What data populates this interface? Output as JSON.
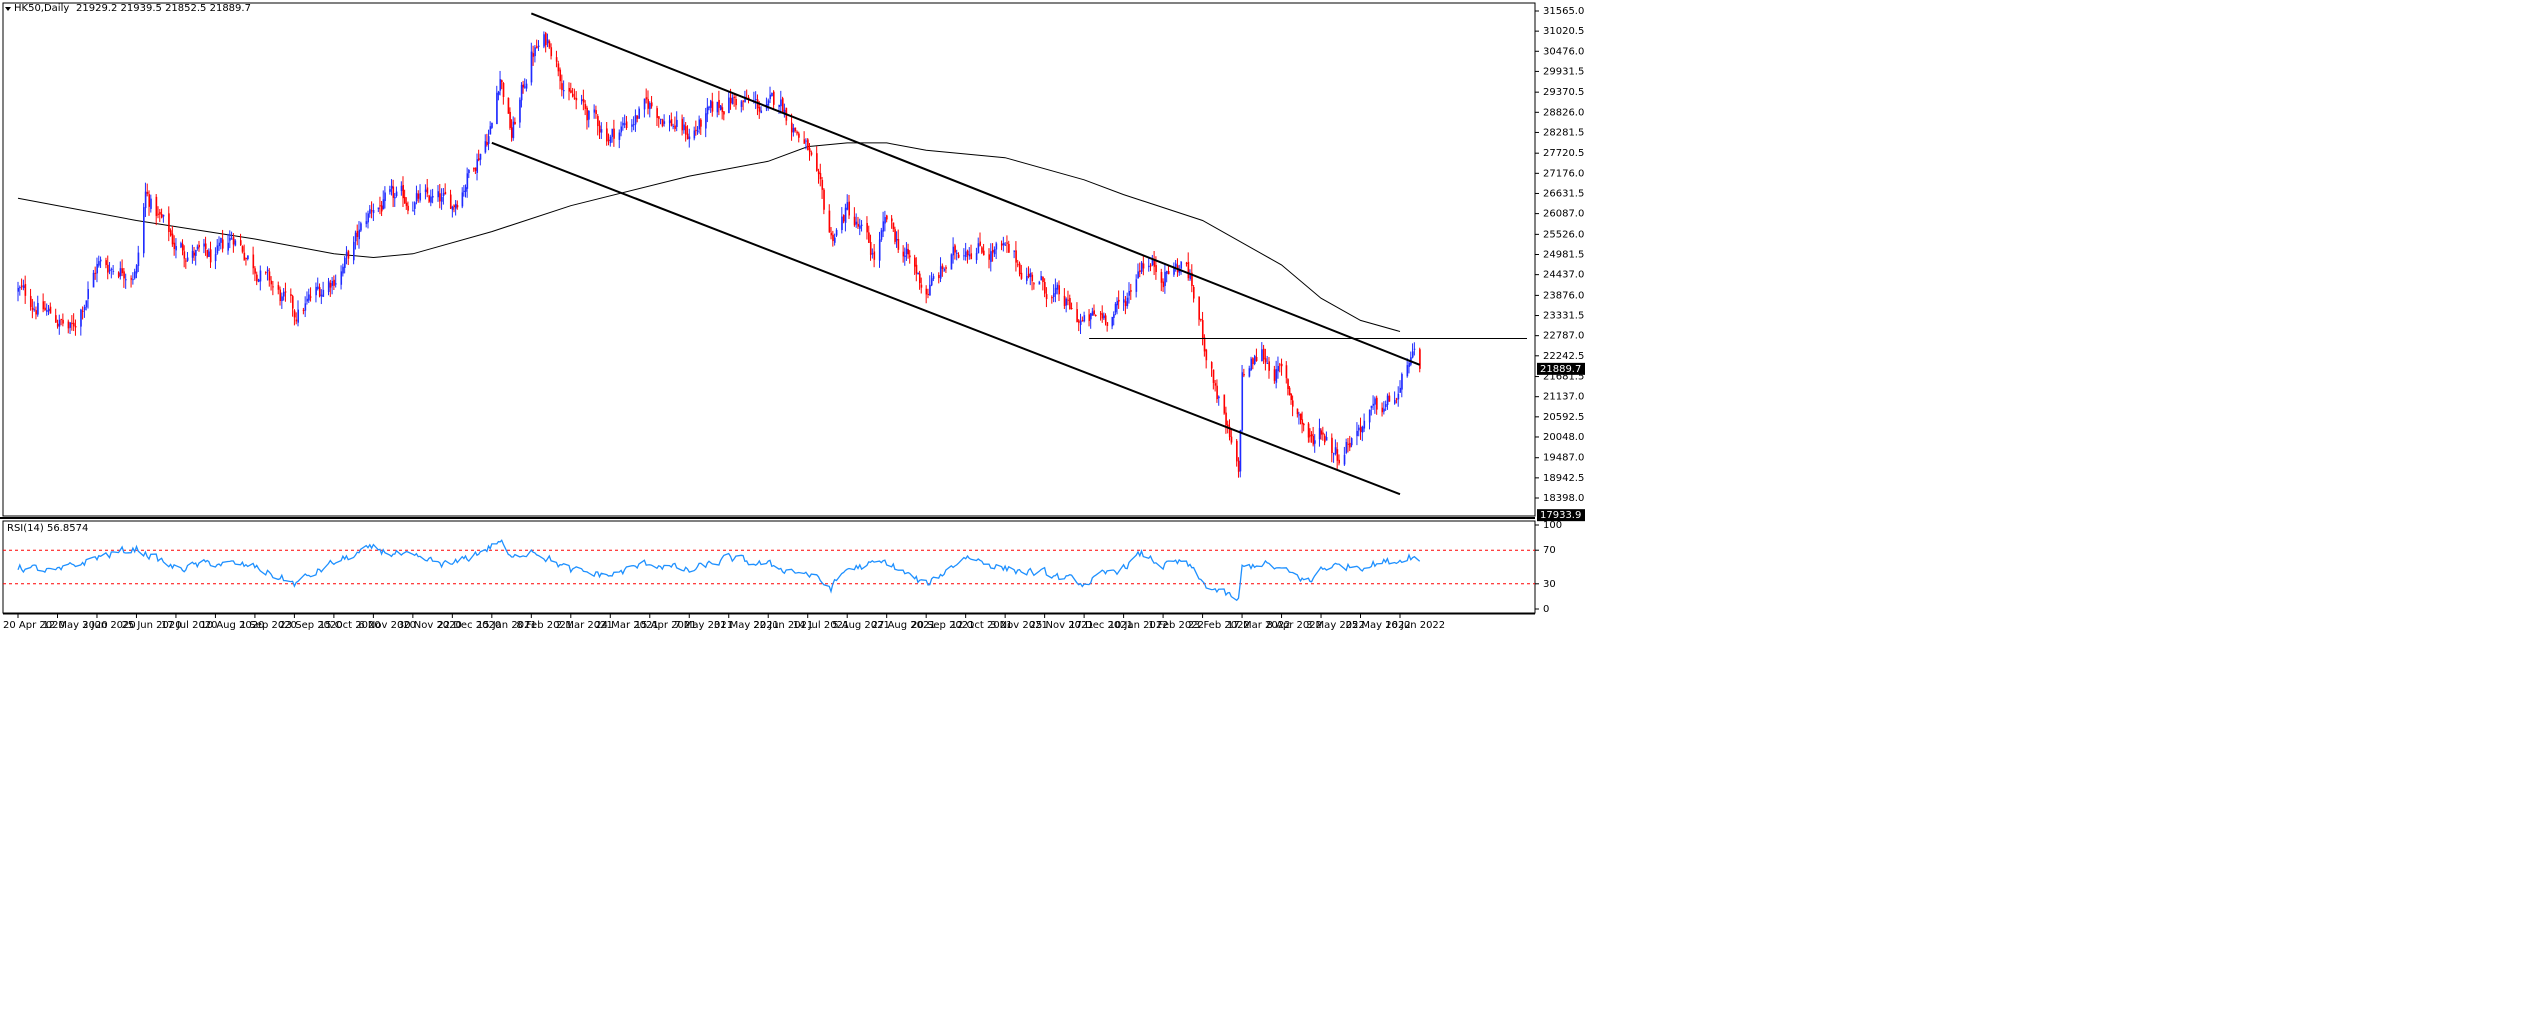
{
  "header": {
    "symbol_timeframe": "HK50,Daily",
    "ohlc": "21929.2 21939.5 21852.5 21889.7"
  },
  "rsi_header": {
    "label": "RSI(14) 56.8574"
  },
  "colors": {
    "bull": "#1f2bff",
    "bear": "#ff0000",
    "ma": "#000000",
    "trendline": "#000000",
    "rsi_line": "#1e90ff",
    "rsi_levels": "#ff0000",
    "price_tag_bg": "#000000",
    "price_tag_text": "#ffffff"
  },
  "chart_data": [
    {
      "type": "candlestick",
      "title": "HK50,Daily",
      "ylim": [
        17933.9,
        31565.0
      ],
      "y_ticks": [
        "31565.0",
        "31020.5",
        "30476.0",
        "29931.5",
        "29370.5",
        "28826.0",
        "28281.5",
        "27720.5",
        "27176.0",
        "26631.5",
        "26087.0",
        "25526.0",
        "24981.5",
        "24437.0",
        "23876.0",
        "23331.5",
        "22787.0",
        "22242.5",
        "21681.5",
        "21137.0",
        "20592.5",
        "20048.0",
        "19487.0",
        "18942.5",
        "18398.0"
      ],
      "x_ticks": [
        "20 Apr 2020",
        "12 May 2020",
        "3 Jun 2020",
        "25 Jun 2020",
        "17 Jul 2020",
        "10 Aug 2020",
        "1 Sep 2020",
        "23 Sep 2020",
        "15 Oct 2020",
        "6 Nov 2020",
        "30 Nov 2020",
        "22 Dec 2020",
        "15 Jan 2021",
        "8 Feb 2021",
        "2 Mar 2021",
        "24 Mar 2021",
        "15 Apr 2021",
        "7 May 2021",
        "31 May 2021",
        "22 Jun 2021",
        "14 Jul 2021",
        "5 Aug 2021",
        "27 Aug 2021",
        "20 Sep 2021",
        "12 Oct 2021",
        "3 Nov 2021",
        "25 Nov 2021",
        "17 Dec 2021",
        "10 Jan 2022",
        "1 Feb 2022",
        "23 Feb 2022",
        "17 Mar 2022",
        "8 Apr 2022",
        "3 May 2022",
        "25 May 2022",
        "16 Jun 2022"
      ],
      "current_price": "21889.7",
      "bottom_price_tag": "17933.9",
      "close_path": [
        [
          "20 Apr 2020",
          24000
        ],
        [
          "12 May 2020",
          23200
        ],
        [
          "20 May 2020",
          22900
        ],
        [
          "3 Jun 2020",
          24700
        ],
        [
          "25 Jun 2020",
          24600
        ],
        [
          "30 Jun 2020",
          26600
        ],
        [
          "17 Jul 2020",
          25200
        ],
        [
          "10 Aug 2020",
          24800
        ],
        [
          "20 Aug 2020",
          25500
        ],
        [
          "1 Sep 2020",
          24700
        ],
        [
          "23 Sep 2020",
          23300
        ],
        [
          "15 Oct 2020",
          24400
        ],
        [
          "22 Oct 2020",
          24800
        ],
        [
          "6 Nov 2020",
          26300
        ],
        [
          "20 Nov 2020",
          26400
        ],
        [
          "30 Nov 2020",
          26500
        ],
        [
          "22 Dec 2020",
          26300
        ],
        [
          "15 Jan 2021",
          28500
        ],
        [
          "20 Jan 2021",
          29900
        ],
        [
          "27 Jan 2021",
          28200
        ],
        [
          "8 Feb 2021",
          30400
        ],
        [
          "18 Feb 2021",
          30800
        ],
        [
          "2 Mar 2021",
          29200
        ],
        [
          "24 Mar 2021",
          28200
        ],
        [
          "15 Apr 2021",
          29000
        ],
        [
          "7 May 2021",
          28200
        ],
        [
          "31 May 2021",
          29200
        ],
        [
          "22 Jun 2021",
          28900
        ],
        [
          "28 Jun 2021",
          29200
        ],
        [
          "14 Jul 2021",
          27800
        ],
        [
          "27 Jul 2021",
          25400
        ],
        [
          "5 Aug 2021",
          26200
        ],
        [
          "20 Aug 2021",
          24900
        ],
        [
          "27 Aug 2021",
          25800
        ],
        [
          "20 Sep 2021",
          24000
        ],
        [
          "12 Oct 2021",
          25300
        ],
        [
          "3 Nov 2021",
          25000
        ],
        [
          "25 Nov 2021",
          24100
        ],
        [
          "17 Dec 2021",
          23100
        ],
        [
          "10 Jan 2022",
          23600
        ],
        [
          "20 Jan 2022",
          24900
        ],
        [
          "1 Feb 2022",
          24500
        ],
        [
          "14 Feb 2022",
          24700
        ],
        [
          "23 Feb 2022",
          22800
        ],
        [
          "15 Mar 2022",
          18900
        ],
        [
          "17 Mar 2022",
          21700
        ],
        [
          "28 Mar 2022",
          22300
        ],
        [
          "8 Apr 2022",
          21700
        ],
        [
          "27 Apr 2022",
          19900
        ],
        [
          "3 May 2022",
          20300
        ],
        [
          "12 May 2022",
          19600
        ],
        [
          "25 May 2022",
          20400
        ],
        [
          "16 Jun 2022",
          21200
        ],
        [
          "21 Jun 2022",
          22200
        ],
        [
          "27 Jun 2022",
          21889.7
        ]
      ],
      "moving_average_path": [
        [
          "20 Apr 2020",
          26500
        ],
        [
          "25 Jun 2020",
          25900
        ],
        [
          "1 Sep 2020",
          25400
        ],
        [
          "15 Oct 2020",
          25000
        ],
        [
          "6 Nov 2020",
          24900
        ],
        [
          "30 Nov 2020",
          25000
        ],
        [
          "15 Jan 2021",
          25600
        ],
        [
          "2 Mar 2021",
          26300
        ],
        [
          "7 May 2021",
          27100
        ],
        [
          "22 Jun 2021",
          27500
        ],
        [
          "14 Jul 2021",
          27900
        ],
        [
          "5 Aug 2021",
          28000
        ],
        [
          "27 Aug 2021",
          28000
        ],
        [
          "20 Sep 2021",
          27800
        ],
        [
          "3 Nov 2021",
          27600
        ],
        [
          "17 Dec 2021",
          27000
        ],
        [
          "10 Jan 2022",
          26600
        ],
        [
          "23 Feb 2022",
          25900
        ],
        [
          "8 Apr 2022",
          24700
        ],
        [
          "3 May 2022",
          23800
        ],
        [
          "25 May 2022",
          23200
        ],
        [
          "16 Jun 2022",
          22900
        ]
      ],
      "channel_upper": [
        [
          "8 Feb 2021",
          31500
        ],
        [
          "27 Jun 2022",
          22000
        ]
      ],
      "channel_lower": [
        [
          "15 Jan 2021",
          28000
        ],
        [
          "16 Jun 2022",
          18500
        ]
      ],
      "horizontal_level": 22710
    },
    {
      "type": "line",
      "title": "RSI(14) 56.8574",
      "ylim": [
        0,
        100
      ],
      "y_ticks": [
        "100",
        "70",
        "30",
        "0"
      ],
      "levels": [
        70,
        30
      ],
      "rsi_path": [
        [
          "20 Apr 2020",
          50
        ],
        [
          "12 May 2020",
          44
        ],
        [
          "3 Jun 2020",
          62
        ],
        [
          "25 Jun 2020",
          72
        ],
        [
          "17 Jul 2020",
          48
        ],
        [
          "10 Aug 2020",
          55
        ],
        [
          "1 Sep 2020",
          50
        ],
        [
          "23 Sep 2020",
          30
        ],
        [
          "15 Oct 2020",
          55
        ],
        [
          "6 Nov 2020",
          72
        ],
        [
          "30 Nov 2020",
          60
        ],
        [
          "22 Dec 2020",
          52
        ],
        [
          "15 Jan 2021",
          75
        ],
        [
          "20 Jan 2021",
          82
        ],
        [
          "27 Jan 2021",
          58
        ],
        [
          "8 Feb 2021",
          72
        ],
        [
          "2 Mar 2021",
          45
        ],
        [
          "24 Mar 2021",
          40
        ],
        [
          "15 Apr 2021",
          55
        ],
        [
          "7 May 2021",
          45
        ],
        [
          "31 May 2021",
          60
        ],
        [
          "22 Jun 2021",
          52
        ],
        [
          "14 Jul 2021",
          42
        ],
        [
          "27 Jul 2021",
          25
        ],
        [
          "5 Aug 2021",
          48
        ],
        [
          "27 Aug 2021",
          55
        ],
        [
          "20 Sep 2021",
          28
        ],
        [
          "12 Oct 2021",
          63
        ],
        [
          "3 Nov 2021",
          48
        ],
        [
          "25 Nov 2021",
          42
        ],
        [
          "17 Dec 2021",
          30
        ],
        [
          "10 Jan 2022",
          50
        ],
        [
          "20 Jan 2022",
          65
        ],
        [
          "1 Feb 2022",
          52
        ],
        [
          "14 Feb 2022",
          55
        ],
        [
          "23 Feb 2022",
          30
        ],
        [
          "15 Mar 2022",
          10
        ],
        [
          "17 Mar 2022",
          48
        ],
        [
          "28 Mar 2022",
          55
        ],
        [
          "8 Apr 2022",
          46
        ],
        [
          "27 Apr 2022",
          32
        ],
        [
          "3 May 2022",
          50
        ],
        [
          "25 May 2022",
          52
        ],
        [
          "16 Jun 2022",
          58
        ],
        [
          "21 Jun 2022",
          65
        ],
        [
          "27 Jun 2022",
          56.8574
        ]
      ]
    }
  ]
}
